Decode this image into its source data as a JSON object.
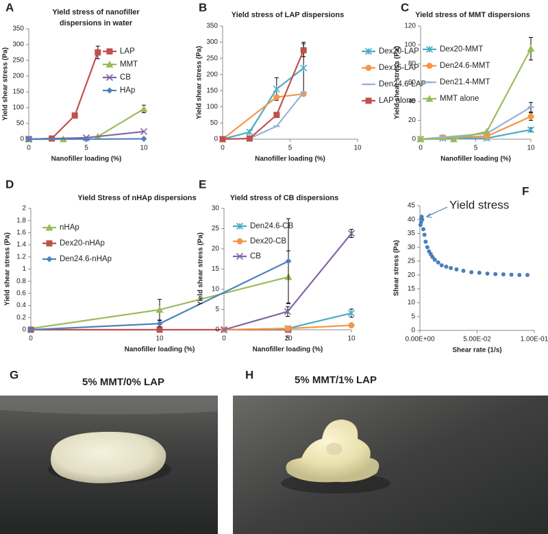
{
  "chart_data": [
    {
      "type": "line",
      "panel_label": "A",
      "title": [
        "Yield stress of nanofiller",
        "dispersions in water"
      ],
      "x_label": "Nanofiller loading (%)",
      "y_label": "Yield shear stress (Pa)",
      "xlim": [
        0,
        10
      ],
      "xticks": [
        0,
        5,
        10
      ],
      "ylim": [
        0,
        350
      ],
      "yticks": [
        0,
        50,
        100,
        150,
        200,
        250,
        300,
        350
      ],
      "series": [
        {
          "name": "LAP",
          "color": "#c0504d",
          "marker": "square",
          "x": [
            0,
            2,
            4,
            6
          ],
          "values": [
            0,
            2,
            75,
            275
          ],
          "errors": [
            null,
            null,
            null,
            20
          ]
        },
        {
          "name": "MMT",
          "color": "#9bbb59",
          "marker": "triangle",
          "x": [
            0,
            3,
            6,
            10
          ],
          "values": [
            0,
            0,
            8,
            96
          ],
          "errors": [
            null,
            null,
            null,
            12
          ]
        },
        {
          "name": "CB",
          "color": "#8064a2",
          "marker": "x",
          "x": [
            0,
            5,
            10
          ],
          "values": [
            0,
            4.5,
            24
          ],
          "errors": [
            null,
            null,
            null
          ]
        },
        {
          "name": "HAp",
          "color": "#4f81bd",
          "marker": "diamond",
          "x": [
            0,
            5,
            10
          ],
          "values": [
            0,
            0.1,
            1
          ],
          "errors": [
            null,
            null,
            null
          ]
        }
      ]
    },
    {
      "type": "line",
      "panel_label": "B",
      "title": [
        "Yield stress of LAP dispersions"
      ],
      "x_label": "Nanofiller loading (%)",
      "y_label": "Yield shear stress (Pa)",
      "xlim": [
        0,
        10
      ],
      "xticks": [
        0,
        5,
        10
      ],
      "ylim": [
        0,
        350
      ],
      "yticks": [
        0,
        50,
        100,
        150,
        200,
        250,
        300,
        350
      ],
      "series": [
        {
          "name": "Dex20-LAP",
          "color": "#4bacc6",
          "marker": "star",
          "x": [
            0,
            2,
            4,
            6
          ],
          "values": [
            0,
            22,
            155,
            220
          ],
          "errors": [
            null,
            null,
            35,
            80
          ]
        },
        {
          "name": "Dex15-LAP",
          "color": "#f79646",
          "marker": "circle",
          "x": [
            0,
            4,
            6
          ],
          "values": [
            0,
            130,
            140
          ],
          "errors": [
            null,
            null,
            null
          ]
        },
        {
          "name": "Den24.6-LAP",
          "color": "#95b3d7",
          "marker": "dash",
          "x": [
            0,
            2,
            4,
            6
          ],
          "values": [
            0,
            2,
            40,
            145
          ],
          "errors": [
            null,
            null,
            null,
            null
          ]
        },
        {
          "name": "LAP alone",
          "color": "#c0504d",
          "marker": "square",
          "x": [
            0,
            2,
            4,
            6
          ],
          "values": [
            0,
            2,
            75,
            275
          ],
          "errors": [
            null,
            null,
            null,
            20
          ]
        }
      ]
    },
    {
      "type": "line",
      "panel_label": "C",
      "title": [
        "Yield stress of MMT dispersions"
      ],
      "x_label": "Nanofiller loading (%)",
      "y_label": "Yield shear stress (Pa)",
      "xlim": [
        0,
        10
      ],
      "xticks": [
        0,
        5,
        10
      ],
      "ylim": [
        0,
        120
      ],
      "yticks": [
        0,
        20,
        40,
        60,
        80,
        100,
        120
      ],
      "series": [
        {
          "name": "Dex20-MMT",
          "color": "#4bacc6",
          "marker": "star",
          "x": [
            0,
            2,
            6,
            10
          ],
          "values": [
            0,
            1,
            1,
            10
          ],
          "errors": [
            null,
            null,
            null,
            2
          ]
        },
        {
          "name": "Den24.6-MMT",
          "color": "#f79646",
          "marker": "circle",
          "x": [
            0,
            2,
            6,
            10
          ],
          "values": [
            0,
            2,
            3,
            24
          ],
          "errors": [
            null,
            null,
            null,
            4
          ]
        },
        {
          "name": "Den21.4-MMT",
          "color": "#95b3d7",
          "marker": "dash",
          "x": [
            0,
            2,
            6,
            10
          ],
          "values": [
            0,
            2,
            6,
            34
          ],
          "errors": [
            null,
            null,
            null,
            5
          ]
        },
        {
          "name": "MMT alone",
          "color": "#9bbb59",
          "marker": "triangle",
          "x": [
            0,
            3,
            6,
            10
          ],
          "values": [
            0,
            0,
            8,
            96
          ],
          "errors": [
            null,
            null,
            null,
            12
          ]
        }
      ]
    },
    {
      "type": "line",
      "panel_label": "D",
      "title": [
        "Yield Stress of nHAp dispersions"
      ],
      "x_label": "Nanofiller loading (%)",
      "y_label": "Yield shear stress (Pa)",
      "xlim": [
        0,
        20
      ],
      "xticks": [
        0,
        10,
        20
      ],
      "ylim": [
        0,
        2
      ],
      "yticks": [
        0,
        0.2,
        0.4,
        0.6,
        0.8,
        1,
        1.2,
        1.4,
        1.6,
        1.8,
        2
      ],
      "series": [
        {
          "name": "nHAp",
          "color": "#9bbb59",
          "marker": "triangle",
          "x": [
            0,
            10,
            20
          ],
          "values": [
            0.02,
            0.33,
            0.87
          ],
          "errors": [
            null,
            0.17,
            0.43
          ]
        },
        {
          "name": "Dex20-nHAp",
          "color": "#c0504d",
          "marker": "square",
          "x": [
            0,
            10,
            20
          ],
          "values": [
            0,
            0,
            0
          ],
          "errors": [
            null,
            null,
            null
          ]
        },
        {
          "name": "Den24.6-nHAp",
          "color": "#4f81bd",
          "marker": "diamond",
          "x": [
            0,
            10,
            20
          ],
          "values": [
            0,
            0.1,
            1.13
          ],
          "errors": [
            null,
            0.05,
            0.7
          ]
        }
      ]
    },
    {
      "type": "line",
      "panel_label": "E",
      "title": [
        "Yield stress of CB dispersions"
      ],
      "x_label": "Nanofiller loading (%)",
      "y_label": "Yield shear stress (Pa)",
      "xlim": [
        0,
        10
      ],
      "xticks": [
        0,
        5,
        10
      ],
      "ylim": [
        0,
        30
      ],
      "yticks": [
        0,
        5,
        10,
        15,
        20,
        25,
        30
      ],
      "series": [
        {
          "name": "Den24.6-CB",
          "color": "#4bacc6",
          "marker": "star",
          "x": [
            0,
            5,
            10
          ],
          "values": [
            0,
            0.3,
            4.1
          ],
          "errors": [
            null,
            null,
            1
          ]
        },
        {
          "name": "Dex20-CB",
          "color": "#f79646",
          "marker": "circle",
          "x": [
            0,
            5,
            10
          ],
          "values": [
            0,
            0.3,
            1.1
          ],
          "errors": [
            null,
            null,
            null
          ]
        },
        {
          "name": "CB",
          "color": "#8064a2",
          "marker": "x",
          "x": [
            0,
            5,
            10
          ],
          "values": [
            0,
            4.5,
            23.8
          ],
          "errors": [
            null,
            1.2,
            1
          ]
        }
      ]
    },
    {
      "type": "scatter",
      "panel_label": "F",
      "annotation": "Yield stress",
      "x_label": "Shear rate (1/s)",
      "y_label": "Shear stress (Pa)",
      "xlim": [
        0,
        0.1
      ],
      "xticks": [
        {
          "value": 0,
          "label": "0.00E+00"
        },
        {
          "value": 0.05,
          "label": "5.00E-02"
        },
        {
          "value": 0.1,
          "label": "1.00E-01"
        }
      ],
      "ylim": [
        0,
        45
      ],
      "yticks": [
        0,
        5,
        10,
        15,
        20,
        25,
        30,
        35,
        40,
        45
      ],
      "series": [
        {
          "name": null,
          "color": "#4a7ebb",
          "marker": "circle",
          "x": [
            0.0005,
            0.001,
            0.0012,
            0.0015,
            0.002,
            0.003,
            0.004,
            0.005,
            0.0065,
            0.008,
            0.0095,
            0.011,
            0.013,
            0.016,
            0.019,
            0.023,
            0.027,
            0.032,
            0.038,
            0.045,
            0.052,
            0.059,
            0.066,
            0.073,
            0.08,
            0.087,
            0.094
          ],
          "values": [
            38,
            39,
            40.5,
            41,
            40,
            36.5,
            34.5,
            32,
            30,
            28.5,
            27.5,
            26.5,
            25.5,
            24.5,
            23.5,
            23,
            22.5,
            22,
            21.5,
            21,
            20.8,
            20.5,
            20.3,
            20.2,
            20.1,
            20,
            20
          ]
        }
      ]
    }
  ],
  "photos": [
    {
      "panel_label": "G",
      "caption": "5% MMT/0% LAP"
    },
    {
      "panel_label": "H",
      "caption": "5% MMT/1% LAP"
    }
  ]
}
